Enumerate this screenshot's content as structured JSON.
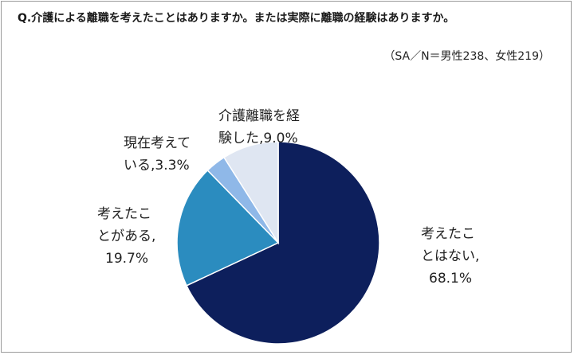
{
  "title": "Q.介護による離職を考えたことはありますか。または実際に離職の経験はありますか。",
  "note": "（SA／N＝男性238、女性219）",
  "chart_data": {
    "type": "pie",
    "start_angle_deg": 0,
    "direction": "clockwise",
    "slices": [
      {
        "label_lines": [
          "考えたこ",
          "とはない,",
          "68.1%"
        ],
        "value": 68.1,
        "color": "#0d1f5c"
      },
      {
        "label_lines": [
          "考えたこ",
          "とがある,",
          "19.7%"
        ],
        "value": 19.7,
        "color": "#2b8cbf"
      },
      {
        "label_lines": [
          "現在考えて",
          "いる,3.3%"
        ],
        "value": 3.3,
        "color": "#8fb8e8"
      },
      {
        "label_lines": [
          "介護離職を経",
          "験した,9.0%"
        ],
        "value": 9.0,
        "color": "#dfe6f2"
      }
    ]
  }
}
